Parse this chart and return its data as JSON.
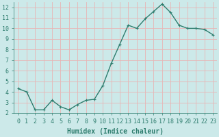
{
  "x": [
    0,
    1,
    2,
    3,
    4,
    5,
    6,
    7,
    8,
    9,
    10,
    11,
    12,
    13,
    14,
    15,
    16,
    17,
    18,
    19,
    20,
    21,
    22,
    23
  ],
  "y": [
    4.3,
    4.0,
    2.3,
    2.3,
    3.2,
    2.6,
    2.3,
    2.8,
    3.2,
    3.3,
    4.6,
    6.7,
    8.5,
    10.3,
    10.0,
    10.9,
    11.6,
    12.3,
    11.5,
    10.3,
    10.0,
    10.0,
    9.9,
    9.4
  ],
  "line_color": "#2e7d6e",
  "marker": "+",
  "marker_size": 3,
  "background_color": "#cce9e9",
  "grid_color": "#e8b4b4",
  "xlabel": "Humidex (Indice chaleur)",
  "ylabel": "",
  "xlim": [
    -0.5,
    23.5
  ],
  "ylim": [
    2,
    12.5
  ],
  "yticks": [
    2,
    3,
    4,
    5,
    6,
    7,
    8,
    9,
    10,
    11,
    12
  ],
  "xticks": [
    0,
    1,
    2,
    3,
    4,
    5,
    6,
    7,
    8,
    9,
    10,
    11,
    12,
    13,
    14,
    15,
    16,
    17,
    18,
    19,
    20,
    21,
    22,
    23
  ],
  "tick_label_fontsize": 6,
  "xlabel_fontsize": 7,
  "line_width": 1.0
}
